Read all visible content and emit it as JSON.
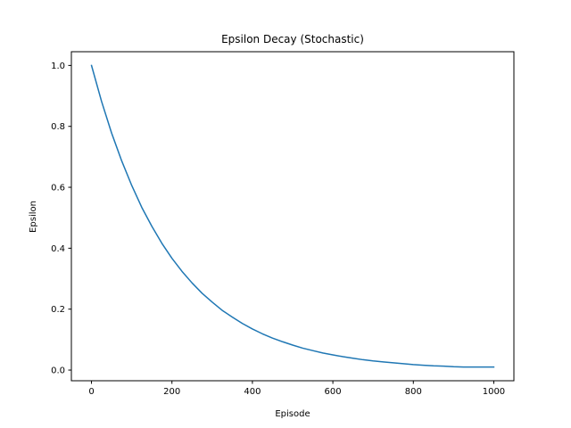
{
  "chart_data": {
    "type": "line",
    "title": "Epsilon Decay (Stochastic)",
    "xlabel": "Episode",
    "ylabel": "Epsilon",
    "xlim": [
      -50,
      1050
    ],
    "ylim": [
      -0.035,
      1.045
    ],
    "x_ticks": [
      0,
      200,
      400,
      600,
      800,
      1000
    ],
    "y_ticks": [
      0.0,
      0.2,
      0.4,
      0.6,
      0.8,
      1.0
    ],
    "x_tick_labels": [
      "0",
      "200",
      "400",
      "600",
      "800",
      "1000"
    ],
    "y_tick_labels": [
      "0.0",
      "0.2",
      "0.4",
      "0.6",
      "0.8",
      "1.0"
    ],
    "grid": false,
    "series": [
      {
        "color": "#1f77b4",
        "x": [
          0,
          25,
          50,
          75,
          100,
          125,
          150,
          175,
          200,
          225,
          250,
          275,
          300,
          325,
          350,
          375,
          400,
          425,
          450,
          475,
          500,
          525,
          550,
          575,
          600,
          625,
          650,
          675,
          700,
          725,
          750,
          775,
          800,
          825,
          850,
          875,
          900,
          925,
          950,
          975,
          1000
        ],
        "y": [
          1.0,
          0.882,
          0.778,
          0.687,
          0.606,
          0.534,
          0.472,
          0.416,
          0.367,
          0.324,
          0.286,
          0.252,
          0.223,
          0.196,
          0.174,
          0.153,
          0.135,
          0.119,
          0.105,
          0.093,
          0.082,
          0.072,
          0.064,
          0.056,
          0.05,
          0.044,
          0.039,
          0.034,
          0.03,
          0.027,
          0.024,
          0.021,
          0.018,
          0.016,
          0.014,
          0.013,
          0.011,
          0.01,
          0.01,
          0.01,
          0.01
        ]
      }
    ]
  }
}
